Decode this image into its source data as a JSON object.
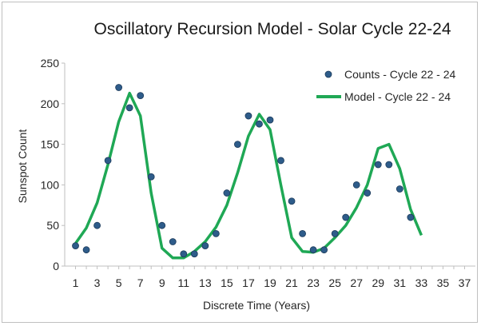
{
  "chart_data": {
    "type": "scatter",
    "title": "Oscillatory Recursion Model - Solar Cycle 22-24",
    "xlabel": "Discrete Time (Years)",
    "ylabel": "Sunspot Count",
    "xlim": [
      0,
      38
    ],
    "ylim": [
      0,
      250
    ],
    "x_ticks": [
      "1",
      "3",
      "5",
      "7",
      "9",
      "11",
      "13",
      "15",
      "17",
      "19",
      "21",
      "23",
      "25",
      "27",
      "29",
      "31",
      "33",
      "35",
      "37"
    ],
    "y_ticks": [
      "0",
      "50",
      "100",
      "150",
      "200",
      "250"
    ],
    "grid": false,
    "legend_position": "top-right",
    "series": [
      {
        "name": "Counts - Cycle 22 - 24",
        "type": "scatter",
        "color": "#2e5c8a",
        "x": [
          1,
          2,
          3,
          4,
          5,
          6,
          7,
          8,
          9,
          10,
          11,
          12,
          13,
          14,
          15,
          16,
          17,
          18,
          19,
          20,
          21,
          22,
          23,
          24,
          25,
          26,
          27,
          28,
          29,
          30,
          31,
          32
        ],
        "y": [
          25,
          20,
          50,
          130,
          220,
          195,
          210,
          110,
          50,
          30,
          15,
          15,
          25,
          40,
          90,
          150,
          185,
          175,
          180,
          130,
          80,
          40,
          20,
          20,
          40,
          60,
          100,
          90,
          125,
          125,
          95,
          60
        ]
      },
      {
        "name": "Model - Cycle 22 - 24",
        "type": "line",
        "color": "#1fa855",
        "x": [
          1,
          2,
          3,
          4,
          5,
          6,
          7,
          8,
          9,
          10,
          11,
          12,
          13,
          14,
          15,
          16,
          17,
          18,
          19,
          20,
          21,
          22,
          23,
          24,
          25,
          26,
          27,
          28,
          29,
          30,
          31,
          32,
          33
        ],
        "y": [
          28,
          47,
          78,
          125,
          178,
          213,
          185,
          90,
          22,
          10,
          10,
          18,
          30,
          48,
          75,
          115,
          160,
          187,
          168,
          100,
          35,
          18,
          17,
          22,
          35,
          50,
          72,
          100,
          145,
          150,
          120,
          70,
          38
        ]
      }
    ]
  }
}
